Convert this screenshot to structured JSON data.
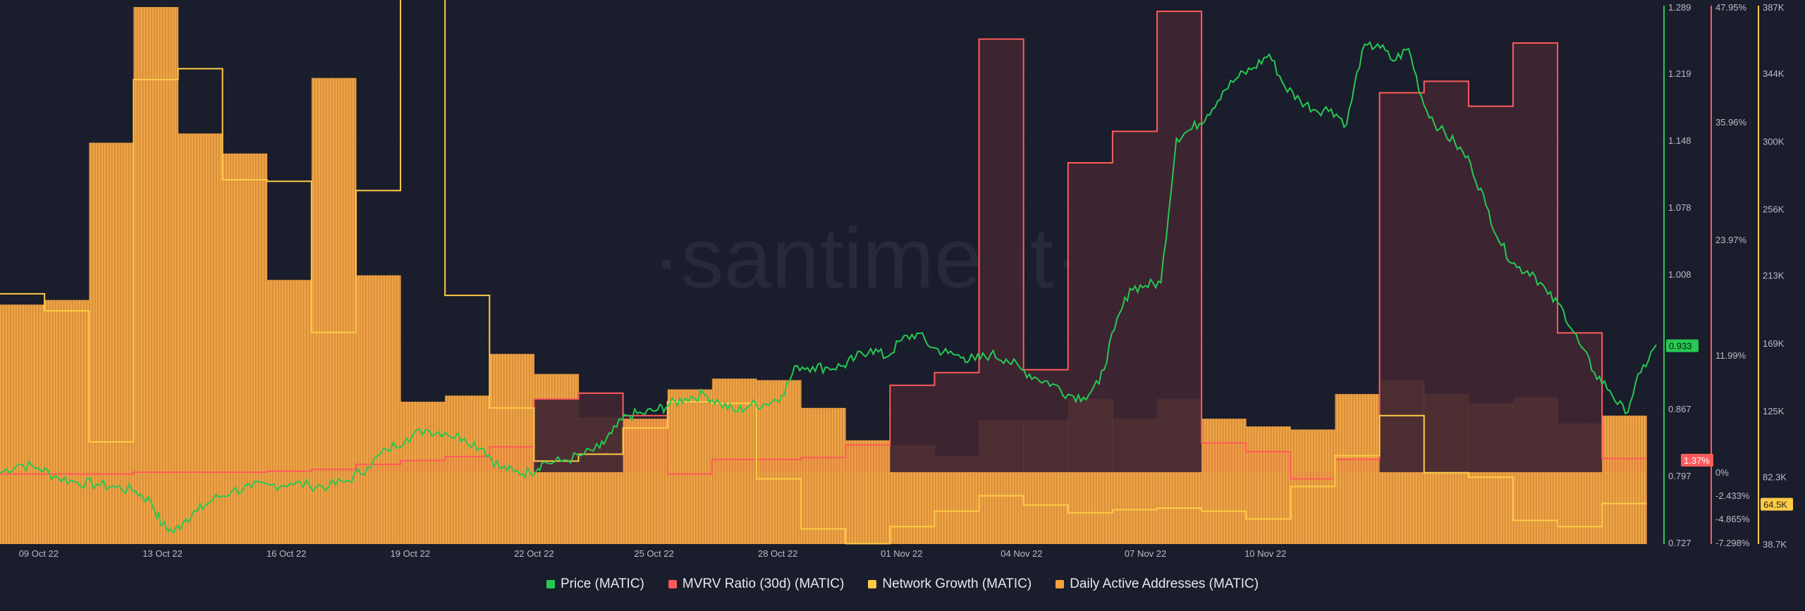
{
  "watermark": "·santiment·",
  "chart_data": {
    "type": "multi",
    "x_ticks": [
      "09 Oct 22",
      "13 Oct 22",
      "16 Oct 22",
      "19 Oct 22",
      "22 Oct 22",
      "25 Oct 22",
      "28 Oct 22",
      "01 Nov 22",
      "04 Nov 22",
      "07 Nov 22",
      "10 Nov 22"
    ],
    "x_range": [
      "2022-10-08",
      "2022-11-10"
    ],
    "axes": {
      "price": {
        "ticks": [
          "1.289",
          "1.219",
          "1.148",
          "1.078",
          "1.008",
          "0.867",
          "0.797",
          "0.727"
        ],
        "range": [
          0.727,
          1.289
        ],
        "color": "#26c953"
      },
      "mvrv": {
        "ticks": [
          "47.95%",
          "35.96%",
          "23.97%",
          "11.99%",
          "0%",
          "-2.433%",
          "-4.865%",
          "-7.298%"
        ],
        "range": [
          -7.298,
          47.95
        ],
        "color": "#ff5b5b"
      },
      "activity": {
        "ticks": [
          "387K",
          "344K",
          "300K",
          "256K",
          "213K",
          "169K",
          "125K",
          "82.3K",
          "38.7K"
        ],
        "range": [
          38.7,
          387
        ],
        "unit": "K",
        "color": "#ffcb47"
      }
    },
    "badges": {
      "price": "0.933",
      "mvrv": "1.37%",
      "activity": "64.5K"
    },
    "series": [
      {
        "name": "Price (MATIC)",
        "color": "#26c953",
        "axis": "price",
        "points": [
          [
            0.0,
            0.8
          ],
          [
            0.5,
            0.809
          ],
          [
            1.0,
            0.805
          ],
          [
            1.5,
            0.795
          ],
          [
            2.0,
            0.79
          ],
          [
            2.5,
            0.788
          ],
          [
            3.0,
            0.785
          ],
          [
            3.5,
            0.781
          ],
          [
            3.9,
            0.77
          ],
          [
            4.2,
            0.745
          ],
          [
            4.5,
            0.738
          ],
          [
            4.8,
            0.752
          ],
          [
            5.1,
            0.76
          ],
          [
            5.5,
            0.772
          ],
          [
            6.0,
            0.781
          ],
          [
            6.5,
            0.785
          ],
          [
            7.0,
            0.787
          ],
          [
            7.5,
            0.789
          ],
          [
            8.0,
            0.787
          ],
          [
            8.5,
            0.786
          ],
          [
            9.0,
            0.792
          ],
          [
            9.5,
            0.806
          ],
          [
            10.0,
            0.824
          ],
          [
            10.5,
            0.836
          ],
          [
            11.0,
            0.845
          ],
          [
            11.5,
            0.842
          ],
          [
            12.0,
            0.836
          ],
          [
            12.5,
            0.825
          ],
          [
            12.9,
            0.806
          ],
          [
            13.3,
            0.801
          ],
          [
            13.7,
            0.8
          ],
          [
            14.0,
            0.81
          ],
          [
            14.5,
            0.812
          ],
          [
            15.0,
            0.818
          ],
          [
            15.5,
            0.826
          ],
          [
            15.8,
            0.841
          ],
          [
            16.2,
            0.86
          ],
          [
            16.6,
            0.862
          ],
          [
            17.0,
            0.866
          ],
          [
            17.3,
            0.871
          ],
          [
            17.7,
            0.878
          ],
          [
            18.2,
            0.882
          ],
          [
            18.6,
            0.873
          ],
          [
            19.0,
            0.864
          ],
          [
            19.4,
            0.871
          ],
          [
            19.8,
            0.872
          ],
          [
            20.2,
            0.881
          ],
          [
            20.6,
            0.912
          ],
          [
            21.0,
            0.911
          ],
          [
            21.4,
            0.91
          ],
          [
            21.8,
            0.912
          ],
          [
            22.1,
            0.92
          ],
          [
            22.5,
            0.93
          ],
          [
            22.9,
            0.921
          ],
          [
            23.3,
            0.939
          ],
          [
            23.7,
            0.946
          ],
          [
            24.1,
            0.931
          ],
          [
            24.5,
            0.925
          ],
          [
            24.9,
            0.921
          ],
          [
            25.2,
            0.918
          ],
          [
            25.6,
            0.924
          ],
          [
            26.0,
            0.919
          ],
          [
            26.4,
            0.908
          ],
          [
            26.8,
            0.899
          ],
          [
            27.2,
            0.893
          ],
          [
            27.6,
            0.882
          ],
          [
            28.0,
            0.879
          ],
          [
            28.4,
            0.893
          ],
          [
            28.8,
            0.95
          ],
          [
            29.2,
            0.993
          ],
          [
            29.6,
            0.996
          ],
          [
            30.0,
            0.999
          ],
          [
            30.4,
            1.15
          ],
          [
            30.8,
            1.16
          ],
          [
            31.2,
            1.175
          ],
          [
            31.6,
            1.2
          ],
          [
            32.0,
            1.215
          ],
          [
            32.4,
            1.225
          ],
          [
            32.8,
            1.239
          ],
          [
            33.2,
            1.205
          ],
          [
            33.6,
            1.19
          ],
          [
            34.0,
            1.18
          ],
          [
            34.4,
            1.181
          ],
          [
            34.8,
            1.165
          ],
          [
            35.2,
            1.243
          ],
          [
            35.6,
            1.25
          ],
          [
            36.0,
            1.232
          ],
          [
            36.4,
            1.245
          ],
          [
            36.8,
            1.185
          ],
          [
            37.2,
            1.16
          ],
          [
            37.6,
            1.145
          ],
          [
            38.0,
            1.124
          ],
          [
            38.4,
            1.08
          ],
          [
            38.8,
            1.038
          ],
          [
            39.2,
            1.015
          ],
          [
            39.6,
            1.01
          ],
          [
            40.0,
            0.987
          ],
          [
            40.4,
            0.97
          ],
          [
            40.8,
            0.936
          ],
          [
            41.2,
            0.905
          ],
          [
            41.6,
            0.886
          ],
          [
            42.0,
            0.862
          ],
          [
            42.4,
            0.905
          ],
          [
            42.8,
            0.934
          ]
        ]
      },
      {
        "name": "MVRV Ratio (30d) (MATIC)",
        "color": "#ff5b5b",
        "axis": "mvrv",
        "steps": [
          -0.2,
          -0.2,
          -0.2,
          0.0,
          0.0,
          0.0,
          0.1,
          0.3,
          0.8,
          1.2,
          1.6,
          2.6,
          7.5,
          8.1,
          5.8,
          -0.2,
          1.3,
          1.3,
          1.5,
          2.8,
          8.9,
          10.2,
          44.6,
          10.5,
          31.8,
          35.0,
          47.5,
          3.0,
          2.1,
          -0.7,
          1.3,
          39.0,
          40.2,
          37.6,
          44.2,
          14.3,
          1.4
        ]
      },
      {
        "name": "Network Growth (MATIC)",
        "color": "#ffcb47",
        "axis": "activity",
        "steps": [
          201.0,
          190.0,
          105.0,
          340.0,
          347.0,
          275.0,
          274.0,
          176.0,
          268.0,
          393.0,
          200.0,
          127.0,
          92.5,
          97.0,
          114.0,
          131.0,
          130.0,
          81.0,
          48.5,
          39.0,
          50.0,
          60.0,
          70.0,
          64.0,
          59.0,
          61.0,
          62.0,
          60.0,
          55.0,
          76.0,
          96.0,
          122.0,
          85.0,
          82.0,
          54.0,
          50.0,
          65.0
        ]
      },
      {
        "name": "Daily Active Addresses (MATIC)",
        "color": "#f4a340",
        "axis": "activity",
        "steps": [
          194.0,
          197.0,
          299.0,
          387.0,
          305.0,
          292.0,
          210.0,
          341.0,
          213.0,
          131.0,
          135.0,
          162.0,
          149.0,
          121.0,
          120.0,
          139.0,
          146.0,
          145.0,
          127.0,
          106.0,
          103.0,
          96.0,
          119.0,
          119.0,
          133.0,
          120.0,
          133.0,
          120.0,
          115.0,
          113.0,
          136.0,
          145.0,
          136.0,
          130.0,
          134.0,
          117.0,
          122.0
        ]
      }
    ],
    "legend": [
      "Price (MATIC)",
      "MVRV Ratio (30d) (MATIC)",
      "Network Growth (MATIC)",
      "Daily Active Addresses (MATIC)"
    ]
  }
}
